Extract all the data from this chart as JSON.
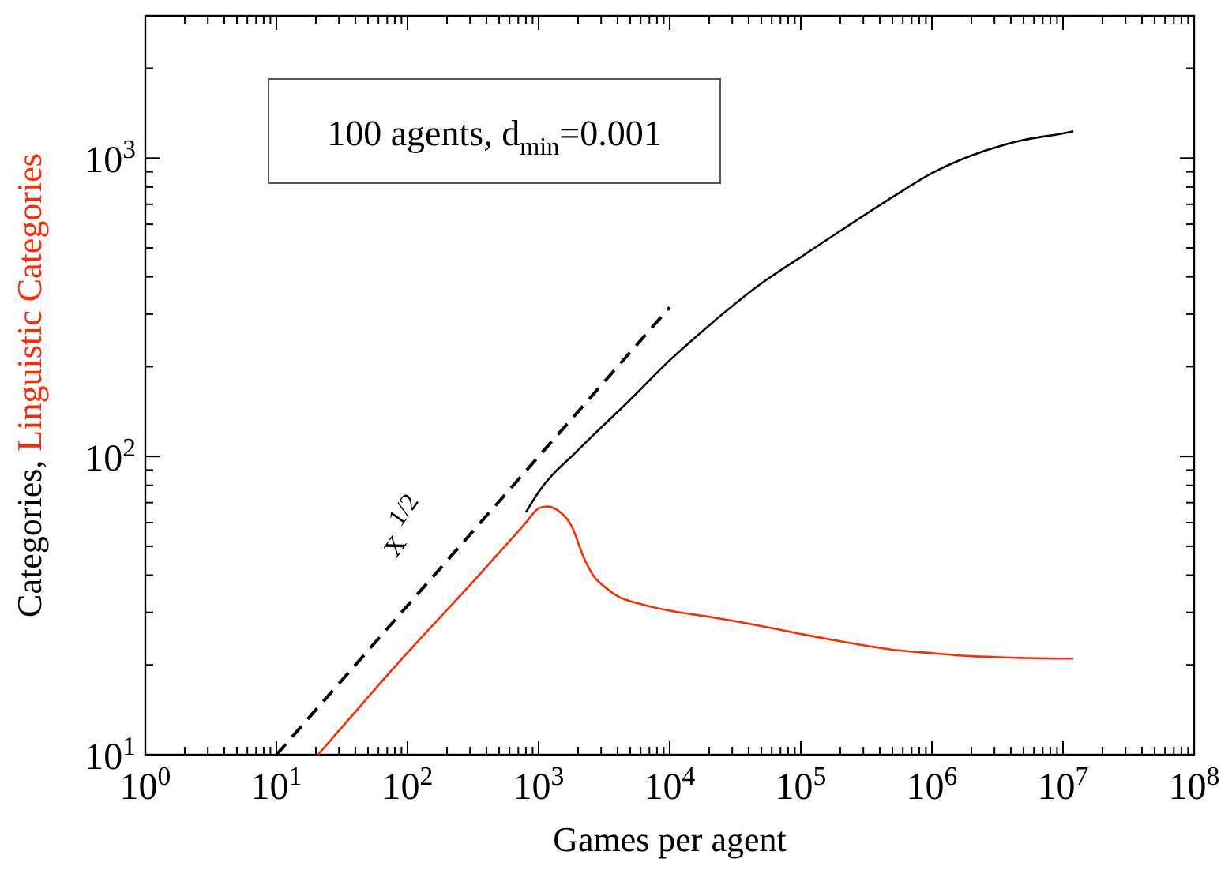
{
  "chart_data": {
    "type": "line",
    "xlabel": "Games per agent",
    "log": "xy",
    "xlim": [
      1,
      100000000
    ],
    "ylim": [
      10,
      3000
    ],
    "xticks": [
      {
        "value": 1,
        "label": "10$^{0}$"
      },
      {
        "value": 10,
        "label": "10$^{1}$"
      },
      {
        "value": 100,
        "label": "10$^{2}$"
      },
      {
        "value": 1000,
        "label": "10$^{3}$"
      },
      {
        "value": 10000,
        "label": "10$^{4}$"
      },
      {
        "value": 100000,
        "label": "10$^{5}$"
      },
      {
        "value": 1000000,
        "label": "10$^{6}$"
      },
      {
        "value": 10000000,
        "label": "10$^{7}$"
      },
      {
        "value": 100000000,
        "label": "10$^{8}$"
      }
    ],
    "yticks": [
      {
        "value": 10,
        "label": "10$^{1}$"
      },
      {
        "value": 100,
        "label": "10$^{2}$"
      },
      {
        "value": 1000,
        "label": "10$^{3}$"
      }
    ],
    "series": [
      {
        "name": "Categories,",
        "color": "#000000",
        "x": [
          800,
          1000,
          2000,
          5000,
          10000,
          20000,
          50000,
          100000,
          200000,
          500000,
          1000000,
          2000000,
          5000000,
          10000000,
          12000000
        ],
        "values": [
          65,
          76,
          105,
          155,
          210,
          275,
          380,
          466,
          570,
          740,
          890,
          1020,
          1150,
          1210,
          1230
        ]
      },
      {
        "name": "Linguistic Categories",
        "color": "#ff2a00",
        "x": [
          20.8,
          50,
          100,
          316,
          600,
          800,
          1000,
          1150,
          1400,
          1800,
          2200,
          2600,
          3200,
          4000,
          6000,
          10000,
          20000,
          50000,
          100000,
          200000,
          500000,
          1000000,
          2000000,
          5000000,
          10000000,
          12000000
        ],
        "values": [
          10,
          15.6,
          22,
          38,
          52,
          60,
          67,
          68,
          66,
          58,
          46,
          40,
          36.5,
          34,
          32,
          30.4,
          29,
          27,
          25.4,
          24,
          22.5,
          21.9,
          21.4,
          21.1,
          21,
          21
        ]
      },
      {
        "color": "#000000",
        "line_style": "dashed",
        "x": [
          10,
          10000
        ],
        "values": [
          10,
          316
        ]
      }
    ],
    "annotations": [
      "100 agents, d$_{min}$=0.001",
      "x $^{1/2}$"
    ]
  }
}
